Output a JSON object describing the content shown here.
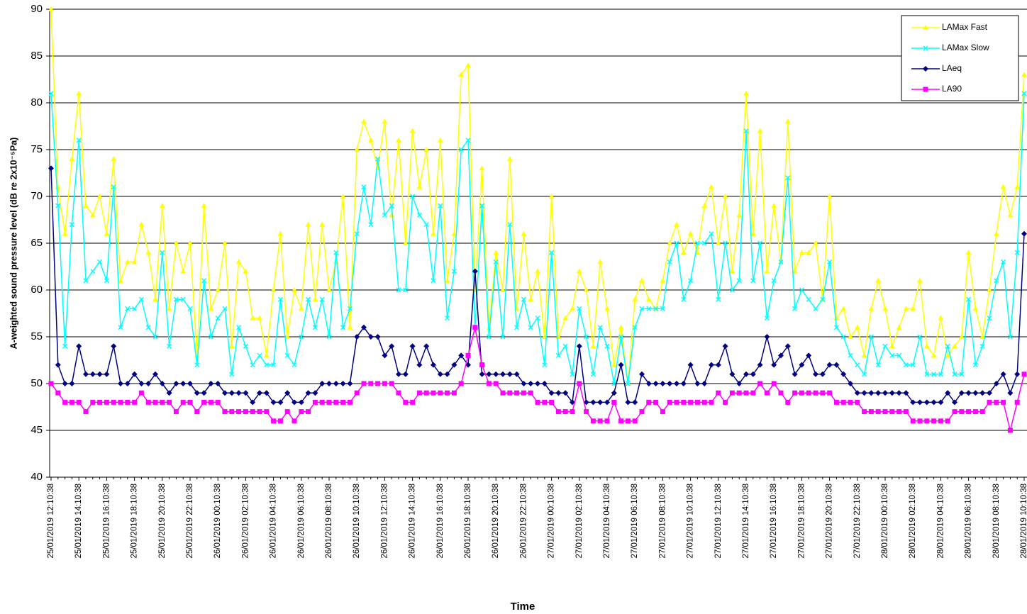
{
  "chart_data": {
    "type": "line",
    "y_label": "A-weighted sound pressure level (dB re 2x10⁻⁵Pa)",
    "x_label": "Time",
    "ylim": [
      40,
      90
    ],
    "yticks": [
      40,
      45,
      50,
      55,
      60,
      65,
      70,
      75,
      80,
      85,
      90
    ],
    "grid": true,
    "legend": "top-right",
    "categories": [
      "25/01/2019 12:10:38",
      null,
      null,
      null,
      "25/01/2019 14:10:38",
      null,
      null,
      null,
      "25/01/2019 16:10:38",
      null,
      null,
      null,
      "25/01/2019 18:10:38",
      null,
      null,
      null,
      "25/01/2019 20:10:38",
      null,
      null,
      null,
      "25/01/2019 22:10:38",
      null,
      null,
      null,
      "26/01/2019 00:10:38",
      null,
      null,
      null,
      "26/01/2019 02:10:38",
      null,
      null,
      null,
      "26/01/2019 04:10:38",
      null,
      null,
      null,
      "26/01/2019 06:10:38",
      null,
      null,
      null,
      "26/01/2019 08:10:38",
      null,
      null,
      null,
      "26/01/2019 10:10:38",
      null,
      null,
      null,
      "26/01/2019 12:10:38",
      null,
      null,
      null,
      "26/01/2019 14:10:38",
      null,
      null,
      null,
      "26/01/2019 16:10:38",
      null,
      null,
      null,
      "26/01/2019 18:10:38",
      null,
      null,
      null,
      "26/01/2019 20:10:38",
      null,
      null,
      null,
      "26/01/2019 22:10:38",
      null,
      null,
      null,
      "27/01/2019 00:10:38",
      null,
      null,
      null,
      "27/01/2019 02:10:38",
      null,
      null,
      null,
      "27/01/2019 04:10:38",
      null,
      null,
      null,
      "27/01/2019 06:10:38",
      null,
      null,
      null,
      "27/01/2019 08:10:38",
      null,
      null,
      null,
      "27/01/2019 10:10:38",
      null,
      null,
      null,
      "27/01/2019 12:10:38",
      null,
      null,
      null,
      "27/01/2019 14:10:38",
      null,
      null,
      null,
      "27/01/2019 16:10:38",
      null,
      null,
      null,
      "27/01/2019 18:10:38",
      null,
      null,
      null,
      "27/01/2019 20:10:38",
      null,
      null,
      null,
      "27/01/2019 22:10:38",
      null,
      null,
      null,
      "28/01/2019 00:10:38",
      null,
      null,
      null,
      "28/01/2019 02:10:38",
      null,
      null,
      null,
      "28/01/2019 04:10:38",
      null,
      null,
      null,
      "28/01/2019 06:10:38",
      null,
      null,
      null,
      "28/01/2019 08:10:38",
      null,
      null,
      null,
      "28/01/2019 10:10:38"
    ],
    "series": [
      {
        "name": "LAMax Fast",
        "color": "#ffff00",
        "marker": "triangle",
        "values": [
          90,
          71,
          66,
          74,
          81,
          69,
          68,
          70,
          66,
          74,
          61,
          63,
          63,
          67,
          64,
          59,
          69,
          58,
          65,
          62,
          65,
          53,
          69,
          58,
          60,
          65,
          54,
          63,
          62,
          57,
          57,
          53,
          60,
          66,
          55,
          60,
          58,
          67,
          59,
          67,
          60,
          63,
          70,
          56,
          75,
          78,
          76,
          73,
          78,
          68,
          76,
          65,
          77,
          71,
          75,
          66,
          76,
          61,
          66,
          83,
          84,
          60,
          73,
          56,
          64,
          60,
          74,
          58,
          66,
          59,
          62,
          55,
          70,
          55,
          57,
          58,
          62,
          60,
          54,
          63,
          58,
          52,
          56,
          50,
          59,
          61,
          59,
          58,
          61,
          65,
          67,
          64,
          66,
          64,
          69,
          71,
          65,
          70,
          62,
          68,
          81,
          66,
          77,
          62,
          69,
          63,
          78,
          62,
          64,
          64,
          65,
          59,
          70,
          57,
          58,
          55,
          56,
          53,
          58,
          61,
          58,
          54,
          56,
          58,
          58,
          61,
          54,
          53,
          57,
          53,
          54,
          55,
          64,
          58,
          55,
          60,
          66,
          71,
          68,
          71,
          83
        ]
      },
      {
        "name": "LAMax Slow",
        "color": "#00ffff",
        "marker": "cross",
        "values": [
          81,
          69,
          54,
          67,
          76,
          61,
          62,
          63,
          61,
          71,
          56,
          58,
          58,
          59,
          56,
          55,
          64,
          54,
          59,
          59,
          58,
          52,
          61,
          55,
          57,
          58,
          51,
          56,
          54,
          52,
          53,
          52,
          52,
          59,
          53,
          52,
          55,
          59,
          56,
          59,
          55,
          64,
          56,
          58,
          66,
          71,
          67,
          74,
          68,
          69,
          60,
          60,
          70,
          68,
          67,
          61,
          69,
          57,
          62,
          75,
          76,
          56,
          69,
          55,
          63,
          55,
          67,
          56,
          59,
          56,
          57,
          52,
          64,
          53,
          54,
          51,
          58,
          55,
          51,
          56,
          54,
          50,
          55,
          50,
          56,
          58,
          58,
          58,
          58,
          63,
          65,
          59,
          61,
          65,
          65,
          66,
          59,
          65,
          60,
          61,
          77,
          61,
          65,
          57,
          61,
          63,
          72,
          58,
          60,
          59,
          58,
          59,
          63,
          56,
          55,
          53,
          52,
          51,
          55,
          52,
          54,
          53,
          53,
          52,
          52,
          55,
          51,
          51,
          51,
          54,
          51,
          51,
          59,
          52,
          54,
          57,
          61,
          63,
          55,
          64,
          81
        ]
      },
      {
        "name": "LAeq",
        "color": "#000080",
        "marker": "diamond",
        "values": [
          73,
          52,
          50,
          50,
          54,
          51,
          51,
          51,
          51,
          54,
          50,
          50,
          51,
          50,
          50,
          51,
          50,
          49,
          50,
          50,
          50,
          49,
          49,
          50,
          50,
          49,
          49,
          49,
          49,
          48,
          49,
          49,
          48,
          48,
          49,
          48,
          48,
          49,
          49,
          50,
          50,
          50,
          50,
          50,
          55,
          56,
          55,
          55,
          53,
          54,
          51,
          51,
          54,
          52,
          54,
          52,
          51,
          51,
          52,
          53,
          52,
          62,
          51,
          51,
          51,
          51,
          51,
          51,
          50,
          50,
          50,
          50,
          49,
          49,
          49,
          48,
          54,
          48,
          48,
          48,
          48,
          49,
          52,
          48,
          48,
          51,
          50,
          50,
          50,
          50,
          50,
          50,
          52,
          50,
          50,
          52,
          52,
          54,
          51,
          50,
          51,
          51,
          52,
          55,
          52,
          53,
          54,
          51,
          52,
          53,
          51,
          51,
          52,
          52,
          51,
          50,
          49,
          49,
          49,
          49,
          49,
          49,
          49,
          49,
          48,
          48,
          48,
          48,
          48,
          49,
          48,
          49,
          49,
          49,
          49,
          49,
          50,
          51,
          49,
          51,
          66
        ]
      },
      {
        "name": "LA90",
        "color": "#ff00ff",
        "marker": "square",
        "values": [
          50,
          49,
          48,
          48,
          48,
          47,
          48,
          48,
          48,
          48,
          48,
          48,
          48,
          49,
          48,
          48,
          48,
          48,
          47,
          48,
          48,
          47,
          48,
          48,
          48,
          47,
          47,
          47,
          47,
          47,
          47,
          47,
          46,
          46,
          47,
          46,
          47,
          47,
          48,
          48,
          48,
          48,
          48,
          48,
          49,
          50,
          50,
          50,
          50,
          50,
          49,
          48,
          48,
          49,
          49,
          49,
          49,
          49,
          49,
          50,
          53,
          56,
          52,
          50,
          50,
          49,
          49,
          49,
          49,
          49,
          48,
          48,
          48,
          47,
          47,
          47,
          50,
          47,
          46,
          46,
          46,
          48,
          46,
          46,
          46,
          47,
          48,
          48,
          47,
          48,
          48,
          48,
          48,
          48,
          48,
          48,
          49,
          48,
          49,
          49,
          49,
          49,
          50,
          49,
          50,
          49,
          48,
          49,
          49,
          49,
          49,
          49,
          49,
          48,
          48,
          48,
          48,
          47,
          47,
          47,
          47,
          47,
          47,
          47,
          46,
          46,
          46,
          46,
          46,
          46,
          47,
          47,
          47,
          47,
          47,
          48,
          48,
          48,
          45,
          48,
          51
        ]
      }
    ]
  }
}
